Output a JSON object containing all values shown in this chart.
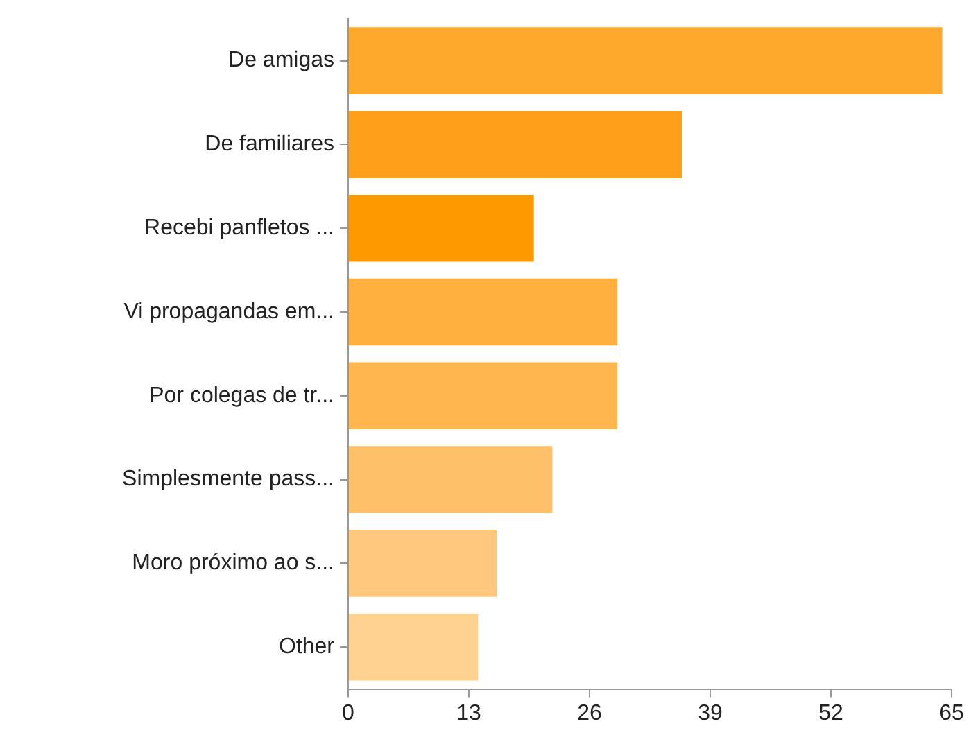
{
  "chart_data": {
    "type": "bar",
    "orientation": "horizontal",
    "categories": [
      "De amigas",
      "De familiares",
      "Recebi panfletos ...",
      "Vi propagandas em...",
      "Por colegas de tr...",
      "Simplesmente pass...",
      "Moro próximo ao s...",
      "Other"
    ],
    "values": [
      64,
      36,
      20,
      29,
      29,
      22,
      16,
      14
    ],
    "colors": [
      "#ffa92c",
      "#ff9f1a",
      "#ff9900",
      "#ffb03f",
      "#ffb64f",
      "#ffc06a",
      "#ffc87e",
      "#ffd291"
    ],
    "xlim": [
      0,
      65
    ],
    "xticks": [
      0,
      13,
      26,
      39,
      52,
      65
    ],
    "grid": false,
    "legend": false
  }
}
